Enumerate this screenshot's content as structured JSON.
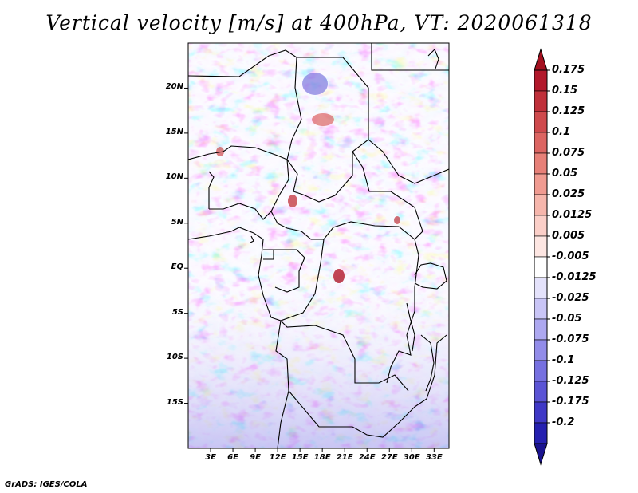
{
  "title": "Vertical velocity [m/s] at 400hPa, VT: 2020061318",
  "footer": "GrADS: IGES/COLA",
  "map": {
    "lon_range": [
      0,
      35
    ],
    "lat_range": [
      -20,
      25
    ],
    "lat_ticks": [
      {
        "value": 20,
        "label": "20N"
      },
      {
        "value": 15,
        "label": "15N"
      },
      {
        "value": 10,
        "label": "10N"
      },
      {
        "value": 5,
        "label": "5N"
      },
      {
        "value": 0,
        "label": "EQ"
      },
      {
        "value": -5,
        "label": "5S"
      },
      {
        "value": -10,
        "label": "10S"
      },
      {
        "value": -15,
        "label": "15S"
      }
    ],
    "lon_ticks": [
      {
        "value": 3,
        "label": "3E"
      },
      {
        "value": 6,
        "label": "6E"
      },
      {
        "value": 9,
        "label": "9E"
      },
      {
        "value": 12,
        "label": "12E"
      },
      {
        "value": 15,
        "label": "15E"
      },
      {
        "value": 18,
        "label": "18E"
      },
      {
        "value": 21,
        "label": "21E"
      },
      {
        "value": 24,
        "label": "24E"
      },
      {
        "value": 27,
        "label": "27E"
      },
      {
        "value": 30,
        "label": "30E"
      },
      {
        "value": 33,
        "label": "33E"
      }
    ]
  },
  "colorbar": {
    "levels": [
      {
        "label": "0.175",
        "color": "#b2182b"
      },
      {
        "label": "0.15",
        "color": "#c0303a"
      },
      {
        "label": "0.125",
        "color": "#cf4a4d"
      },
      {
        "label": "0.1",
        "color": "#dc6562"
      },
      {
        "label": "0.075",
        "color": "#e78078"
      },
      {
        "label": "0.05",
        "color": "#f09b91"
      },
      {
        "label": "0.025",
        "color": "#f6b6ac"
      },
      {
        "label": "0.0125",
        "color": "#fbcfc8"
      },
      {
        "label": "0.005",
        "color": "#fde6e2"
      },
      {
        "label": "-0.005",
        "color": "#ffffff"
      },
      {
        "label": "-0.0125",
        "color": "#e4e2fb"
      },
      {
        "label": "-0.025",
        "color": "#c9c5f6"
      },
      {
        "label": "-0.05",
        "color": "#ada8f0"
      },
      {
        "label": "-0.075",
        "color": "#928ce9"
      },
      {
        "label": "-0.1",
        "color": "#7670e0"
      },
      {
        "label": "-0.125",
        "color": "#5b54d5"
      },
      {
        "label": "-0.175",
        "color": "#3f38c6"
      },
      {
        "label": "-0.2",
        "color": "#2520b0"
      }
    ],
    "top_arrow_color": "#a3101f",
    "bottom_arrow_color": "#1a138f"
  }
}
